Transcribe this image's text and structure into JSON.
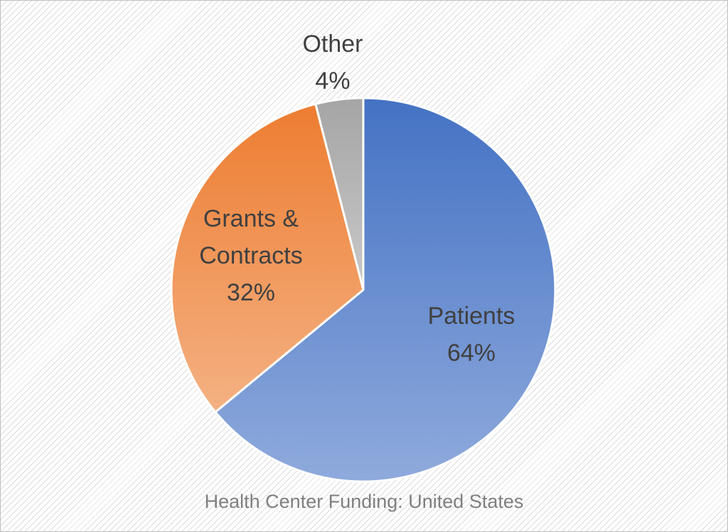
{
  "chart_data": {
    "type": "pie",
    "title": "Health Center Funding: United States",
    "slices": [
      {
        "name": "Patients",
        "label_lines": [
          "Patients",
          "64%"
        ],
        "value": 64,
        "color_top": "#4472c4",
        "color_bottom": "#8faadc"
      },
      {
        "name": "Grants & Contracts",
        "label_lines": [
          "Grants &",
          "Contracts",
          "32%"
        ],
        "value": 32,
        "color_top": "#ed7d31",
        "color_bottom": "#f4b183"
      },
      {
        "name": "Other",
        "label_lines": [
          "Other",
          "4%"
        ],
        "value": 4,
        "color_top": "#a5a5a5",
        "color_bottom": "#c9c9c9"
      }
    ],
    "legend": "none",
    "data_labels": "inside"
  }
}
